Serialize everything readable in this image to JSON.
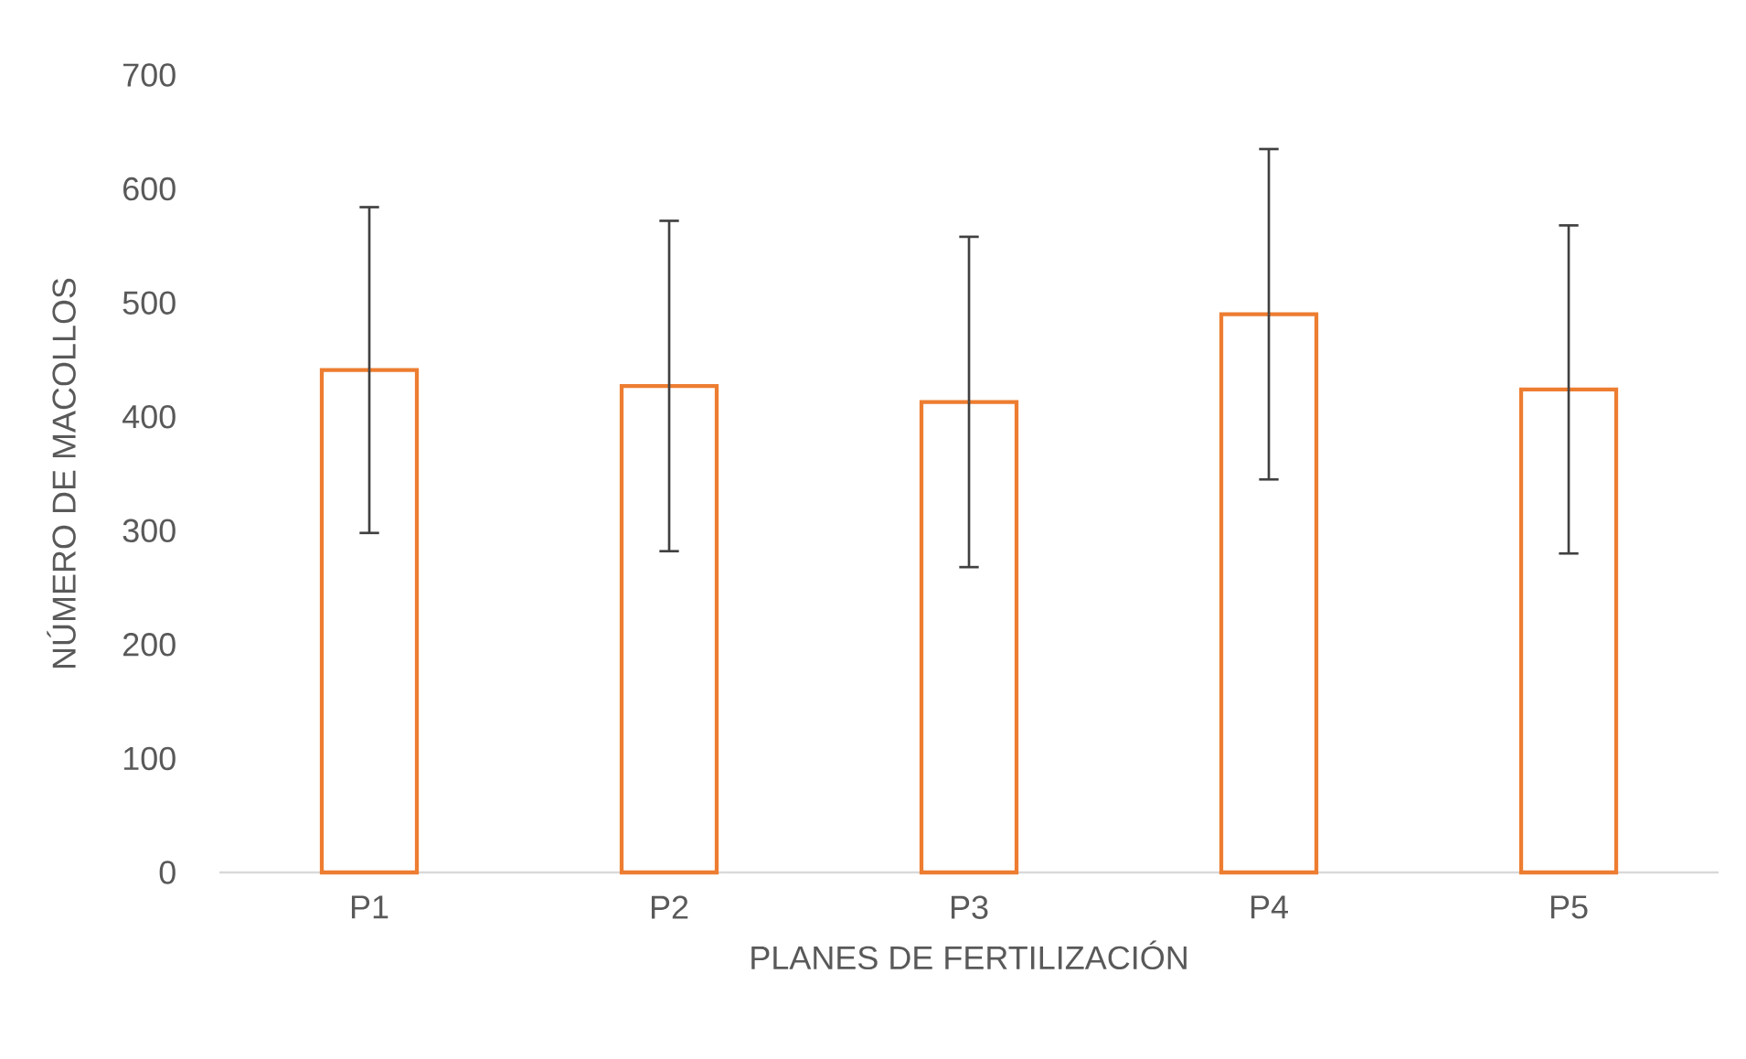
{
  "chart_data": {
    "type": "bar",
    "xlabel": "PLANES DE FERTILIZACIÓN",
    "ylabel": "NÚMERO DE MACOLLOS",
    "categories": [
      "P1",
      "P2",
      "P3",
      "P4",
      "P5"
    ],
    "values": [
      441,
      427,
      413,
      490,
      424
    ],
    "errors": [
      143,
      145,
      145,
      145,
      144
    ],
    "color": "#ed7d31",
    "ylim": [
      0,
      700
    ],
    "yticks": [
      0,
      100,
      200,
      300,
      400,
      500,
      600,
      700
    ],
    "grid": false
  }
}
